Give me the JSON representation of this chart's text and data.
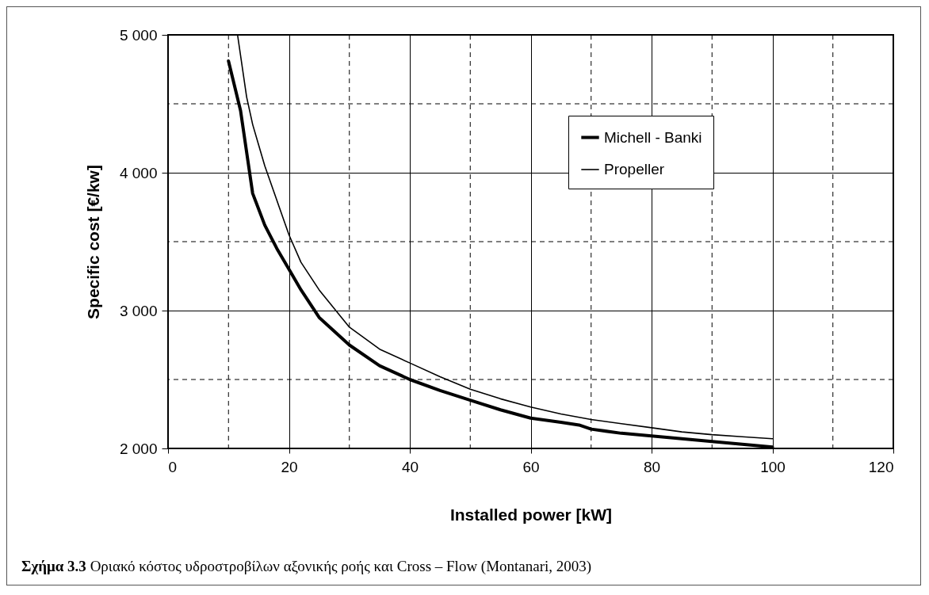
{
  "chart_data": {
    "type": "line",
    "xlabel": "Installed power [kW]",
    "ylabel": "Specific cost [€/kw]",
    "annotations": [
      "Σχήμα 3.3",
      "Οριακό κόστος υδροστροβίλων αξονικής ροής και Cross – Flow (Montanari, 2003)"
    ],
    "xlim": [
      0,
      120
    ],
    "xticks": [
      0,
      20,
      40,
      60,
      80,
      100,
      120
    ],
    "ylim": [
      2000,
      5000
    ],
    "yticks": [
      2000,
      3000,
      4000,
      5000
    ],
    "grid": true,
    "legend": "top right",
    "marker": "none",
    "line_style": "solid",
    "series": [
      {
        "name": "Michell - Banki",
        "color": "#000000",
        "x": [
          10,
          12,
          14,
          16,
          18,
          20,
          22,
          25,
          30,
          35,
          40,
          45,
          50,
          55,
          60,
          65,
          68,
          70,
          75,
          80,
          85,
          90,
          95,
          100
        ],
        "values": [
          4810,
          4450,
          3850,
          3620,
          3450,
          3300,
          3150,
          2950,
          2750,
          2600,
          2500,
          2420,
          2350,
          2280,
          2220,
          2190,
          2170,
          2140,
          2110,
          2090,
          2070,
          2050,
          2030,
          2010
        ]
      },
      {
        "name": "Propeller",
        "color": "#000000",
        "x": [
          11.5,
          13,
          14,
          15,
          16,
          18,
          20,
          22,
          25,
          30,
          35,
          40,
          45,
          50,
          55,
          60,
          65,
          70,
          75,
          80,
          85,
          90,
          95,
          100
        ],
        "values": [
          5000,
          4550,
          4350,
          4200,
          4050,
          3800,
          3550,
          3350,
          3150,
          2880,
          2720,
          2620,
          2520,
          2430,
          2360,
          2300,
          2250,
          2210,
          2180,
          2150,
          2120,
          2100,
          2085,
          2070
        ]
      }
    ]
  }
}
